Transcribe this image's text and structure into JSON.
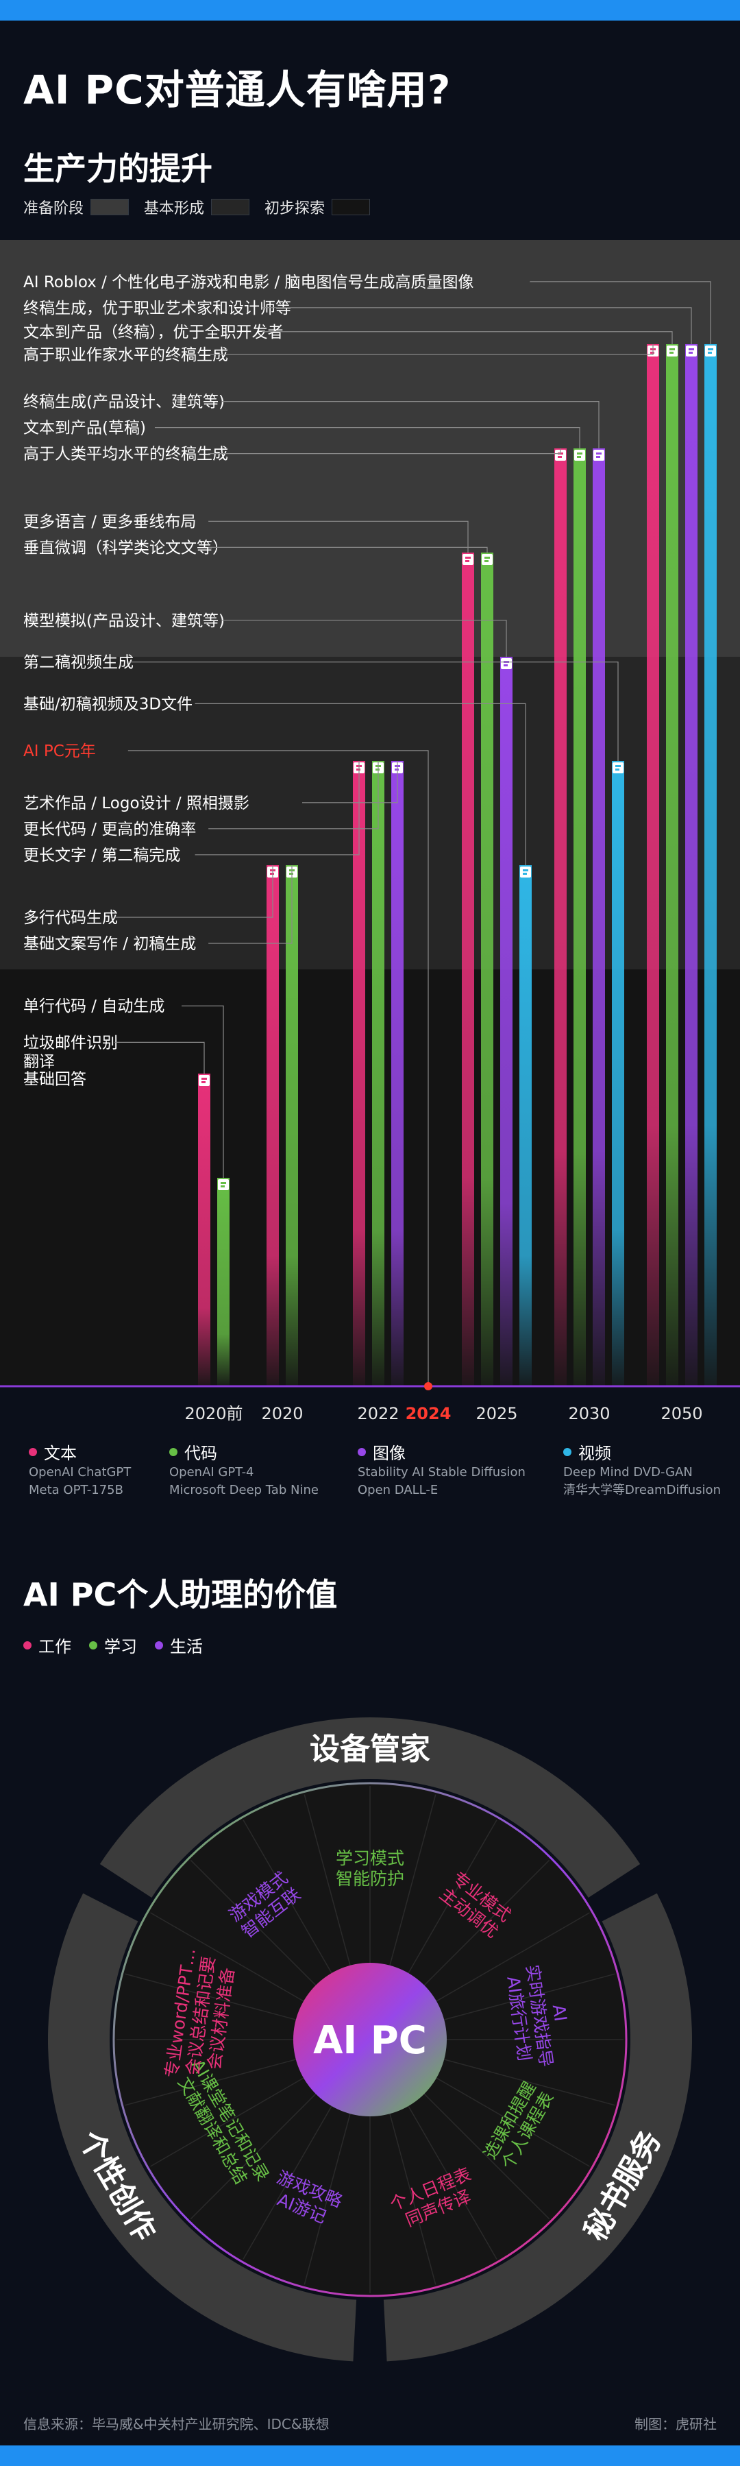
{
  "title": "AI PC对普通人有啥用?",
  "subtitle": "生产力的提升",
  "stage_legend": [
    {
      "label": "准备阶段",
      "color": "#3a3a3a"
    },
    {
      "label": "基本形成",
      "color": "#262626"
    },
    {
      "label": "初步探索",
      "color": "#141414"
    }
  ],
  "colors": {
    "text": "#e8317a",
    "code": "#67bf46",
    "image": "#9747e8",
    "video": "#2fb6e6",
    "highlight": "#ff3b30"
  },
  "chart_data": {
    "type": "bar",
    "categories": [
      "2020前",
      "2020",
      "2022",
      "2024",
      "2025",
      "2030",
      "2050"
    ],
    "highlight_category": "2024",
    "series": [
      {
        "name": "文本",
        "key": "text",
        "values": [
          3,
          5,
          6,
          null,
          8,
          9,
          10
        ]
      },
      {
        "name": "代码",
        "key": "code",
        "values": [
          2,
          5,
          6,
          null,
          8,
          9,
          10
        ]
      },
      {
        "name": "图像",
        "key": "image",
        "values": [
          null,
          null,
          6,
          null,
          7,
          9,
          10
        ]
      },
      {
        "name": "视频",
        "key": "video",
        "values": [
          null,
          null,
          null,
          null,
          5,
          6,
          10
        ]
      }
    ],
    "stage_bands": [
      {
        "label": "初步探索",
        "from": 0,
        "to": 4
      },
      {
        "label": "基本形成",
        "from": 4,
        "to": 7
      },
      {
        "label": "准备阶段",
        "from": 7,
        "to": 11
      }
    ],
    "annotations": [
      {
        "text": "AI Roblox / 个性化电子游戏和电影 / 脑电图信号生成高质量图像",
        "cat": 6,
        "series": "video",
        "value": 10.6
      },
      {
        "text": "终稿生成，优于职业艺术家和设计师等",
        "cat": 6,
        "series": "image",
        "value": 10.35
      },
      {
        "text": "文本到产品（终稿），优于全职开发者",
        "cat": 6,
        "series": "code",
        "value": 10.12
      },
      {
        "text": "高于职业作家水平的终稿生成",
        "cat": 6,
        "series": "text",
        "value": 9.9
      },
      {
        "text": "终稿生成(产品设计、建筑等)",
        "cat": 5,
        "series": "image",
        "value": 9.45
      },
      {
        "text": "文本到产品(草稿)",
        "cat": 5,
        "series": "code",
        "value": 9.2
      },
      {
        "text": "高于人类平均水平的终稿生成",
        "cat": 5,
        "series": "text",
        "value": 8.95
      },
      {
        "text": "更多语言 / 更多垂线布局",
        "cat": 4,
        "series": "text",
        "value": 8.3
      },
      {
        "text": "垂直微调（科学类论文文等）",
        "cat": 4,
        "series": "code",
        "value": 8.05
      },
      {
        "text": "模型模拟(产品设计、建筑等)",
        "cat": 4,
        "series": "image",
        "value": 7.35
      },
      {
        "text": "第二稿视频生成",
        "cat": 5,
        "series": "video",
        "value": 6.95
      },
      {
        "text": "基础/初稿视频及3D文件",
        "cat": 4,
        "series": "video",
        "value": 6.55
      },
      {
        "text": "AI PC元年",
        "cat": 3,
        "series": null,
        "value": 6.1,
        "highlight": true
      },
      {
        "text": "艺术作品 / Logo设计 / 照相摄影",
        "cat": 2,
        "series": "image",
        "value": 5.6
      },
      {
        "text": "更长代码 / 更高的准确率",
        "cat": 2,
        "series": "code",
        "value": 5.35
      },
      {
        "text": "更长文字 / 第二稿完成",
        "cat": 2,
        "series": "text",
        "value": 5.1
      },
      {
        "text": "多行代码生成",
        "cat": 1,
        "series": "text",
        "value": 4.5
      },
      {
        "text": "基础文案写作 / 初稿生成",
        "cat": 1,
        "series": "code",
        "value": 4.25
      },
      {
        "text": "单行代码 / 自动生成",
        "cat": 0,
        "series": "code",
        "value": 3.65
      },
      {
        "text": "垃圾邮件识别",
        "cat": 0,
        "series": "text",
        "value": 3.3
      },
      {
        "text": "翻译",
        "cat": null,
        "series": null,
        "value": 3.12
      },
      {
        "text": "基础回答",
        "cat": null,
        "series": null,
        "value": 2.95
      }
    ]
  },
  "categories_legend": [
    {
      "name": "文本",
      "key": "text",
      "models": [
        "OpenAI ChatGPT",
        "Meta OPT-175B"
      ]
    },
    {
      "name": "代码",
      "key": "code",
      "models": [
        "OpenAI GPT-4",
        "Microsoft Deep Tab Nine"
      ]
    },
    {
      "name": "图像",
      "key": "image",
      "models": [
        "Stability AI Stable Diffusion",
        "Open DALL-E"
      ]
    },
    {
      "name": "视频",
      "key": "video",
      "models": [
        "Deep Mind DVD-GAN",
        "清华大学等DreamDiffusion"
      ]
    }
  ],
  "section2": {
    "title": "AI PC个人助理的价值",
    "legend": [
      {
        "label": "工作",
        "color": "#e8317a"
      },
      {
        "label": "学习",
        "color": "#67bf46"
      },
      {
        "label": "生活",
        "color": "#9747e8"
      }
    ],
    "center": "AI PC",
    "sectors": [
      {
        "name": "设备管家",
        "items": [
          {
            "text": "游戏模式 智能互联",
            "tag": "生活"
          },
          {
            "text": "学习模式 智能防护",
            "tag": "学习"
          },
          {
            "text": "专业模式 主动调优",
            "tag": "工作"
          }
        ]
      },
      {
        "name": "秘书服务",
        "items": [
          {
            "text": "AI 实时游戏指导 AI旅行计划",
            "tag": "生活"
          },
          {
            "text": "选课和提醒 个人课程表",
            "tag": "学习"
          },
          {
            "text": "个人日程表 同声传译",
            "tag": "工作"
          }
        ]
      },
      {
        "name": "个性创作",
        "items": [
          {
            "text": "游戏攻略 AI游记",
            "tag": "生活"
          },
          {
            "text": "AI课堂笔记和记录 文献翻译和总结",
            "tag": "学习"
          },
          {
            "text": "专业word/PPT… 会议总结和记要 会议材料准备",
            "tag": "工作"
          }
        ]
      }
    ]
  },
  "footer": {
    "source": "信息来源：毕马威&中关村产业研究院、IDC&联想",
    "credit": "制图：虎研社"
  }
}
